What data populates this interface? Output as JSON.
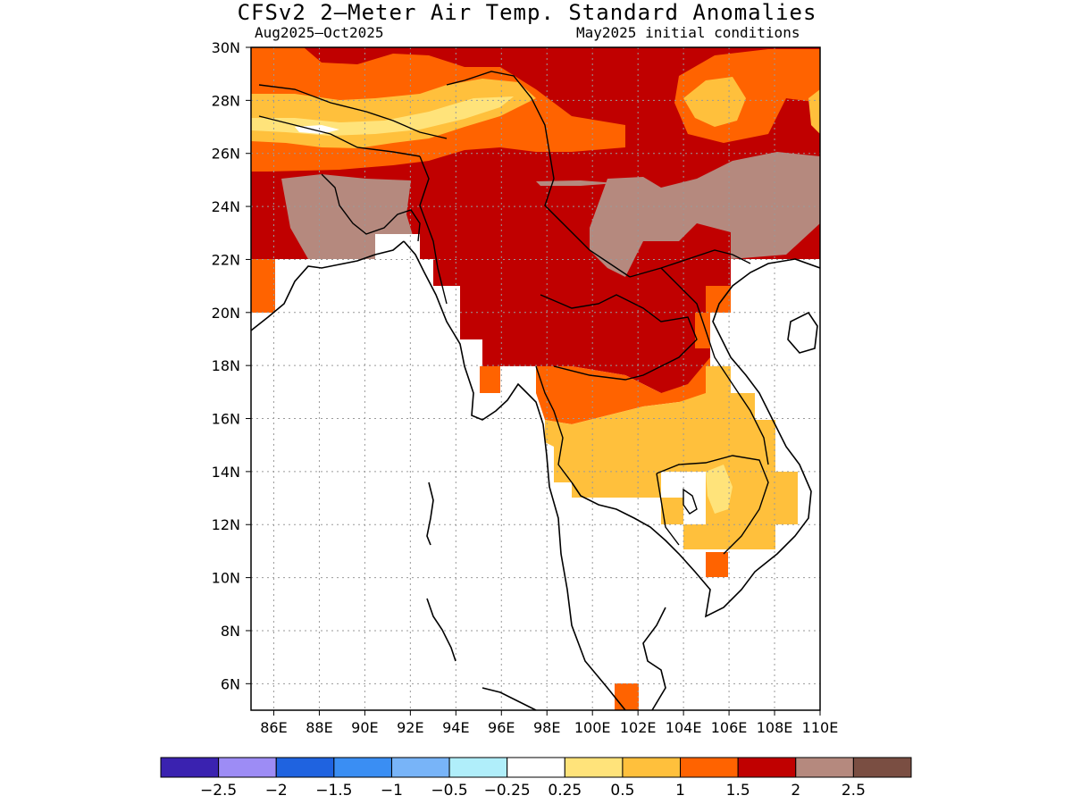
{
  "header": {
    "title": "CFSv2 2–Meter Air Temp. Standard Anomalies",
    "period": "Aug2025–Oct2025",
    "init": "May2025 initial conditions"
  },
  "axes": {
    "lat_labels": [
      "30N",
      "28N",
      "26N",
      "24N",
      "22N",
      "20N",
      "18N",
      "16N",
      "14N",
      "12N",
      "10N",
      "8N",
      "6N"
    ],
    "lon_labels": [
      "86E",
      "88E",
      "90E",
      "92E",
      "94E",
      "96E",
      "98E",
      "100E",
      "102E",
      "104E",
      "106E",
      "108E",
      "110E"
    ],
    "lat_range": [
      5,
      30
    ],
    "lon_range": [
      85,
      110
    ]
  },
  "colorbar": {
    "colors": [
      "#3a22b0",
      "#9d8cf5",
      "#1f63e0",
      "#3a8ef3",
      "#78b4f8",
      "#b0eefa",
      "#ffffff",
      "#ffe37a",
      "#ffc03c",
      "#ff6300",
      "#c00000",
      "#b5897e",
      "#7a4e42"
    ],
    "labels": [
      "−2.5",
      "−2",
      "−1.5",
      "−1",
      "−0.5",
      "−0.25",
      "0.25",
      "0.5",
      "1",
      "1.5",
      "2",
      "2.5"
    ]
  },
  "legend_map": {
    "0.5-1": "#ffc03c",
    "0.25-0.5": "#ffe37a",
    "1-1.5": "#ff6300",
    "1.5-2": "#c00000",
    "2-2.5": "#b5897e"
  }
}
